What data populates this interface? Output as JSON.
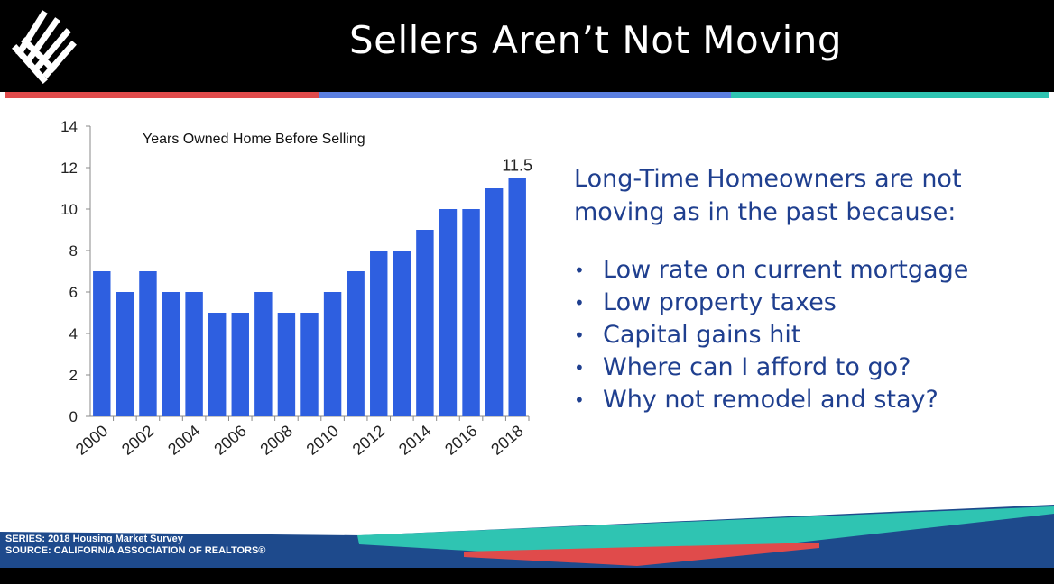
{
  "header": {
    "title": "Sellers Aren’t Not Moving",
    "stripe_colors": [
      "#e04b4b",
      "#5b7fe0",
      "#2fc4b2"
    ]
  },
  "chart_data": {
    "type": "bar",
    "title": "Years Owned Home Before Selling",
    "categories": [
      "2000",
      "2001",
      "2002",
      "2003",
      "2004",
      "2005",
      "2006",
      "2007",
      "2008",
      "2009",
      "2010",
      "2011",
      "2012",
      "2013",
      "2014",
      "2015",
      "2016",
      "2017",
      "2018"
    ],
    "values": [
      7,
      6,
      7,
      6,
      6,
      5,
      5,
      6,
      5,
      5,
      6,
      7,
      8,
      8,
      9,
      10,
      10,
      11,
      11.5
    ],
    "x_tick_labels": [
      "2000",
      "2002",
      "2004",
      "2006",
      "2008",
      "2010",
      "2012",
      "2014",
      "2016",
      "2018"
    ],
    "y_ticks": [
      "0",
      "2",
      "4",
      "6",
      "8",
      "10",
      "12",
      "14"
    ],
    "ylim": [
      0,
      14
    ],
    "data_labels": [
      {
        "category": "2018",
        "label": "11.5"
      }
    ],
    "bar_color": "#2e5fe0",
    "grid": false,
    "legend": "none"
  },
  "panel": {
    "intro": "Long-Time Homeowners are not moving as in the past because:",
    "bullets": [
      "Low rate on current mortgage",
      "Low property taxes",
      "Capital gains hit",
      "Where can I afford to go?",
      "Why not remodel and stay?"
    ]
  },
  "footer": {
    "series": "SERIES: 2018 Housing Market Survey",
    "source": "SOURCE:  CALIFORNIA ASSOCIATION OF REALTORS®",
    "bg_color": "#1e4a8c"
  }
}
